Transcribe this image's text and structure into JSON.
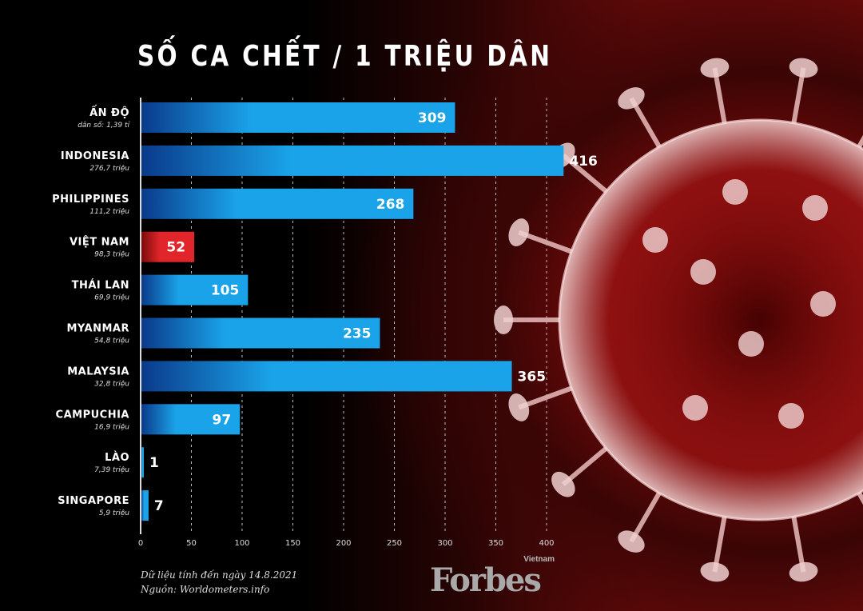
{
  "chart_data": {
    "type": "bar",
    "orientation": "horizontal",
    "title": "SỐ CA CHẾT / 1 TRIỆU DÂN",
    "categories": [
      "ẤN ĐỘ",
      "INDONESIA",
      "PHILIPPINES",
      "VIỆT NAM",
      "THÁI LAN",
      "MYANMAR",
      "MALAYSIA",
      "CAMPUCHIA",
      "LÀO",
      "SINGAPORE"
    ],
    "subtitles": [
      "dân số: 1,39 tỉ",
      "276,7 triệu",
      "111,2 triệu",
      "98,3 triệu",
      "69,9 triệu",
      "54,8 triệu",
      "32,8 triệu",
      "16,9 triệu",
      "7,39 triệu",
      "5,9 triệu"
    ],
    "values": [
      309,
      416,
      268,
      52,
      105,
      235,
      365,
      97,
      1,
      7
    ],
    "highlight": "VIỆT NAM",
    "xlim": [
      0,
      400
    ],
    "xticks": [
      0,
      50,
      100,
      150,
      200,
      250,
      300,
      350,
      400
    ],
    "grid": true,
    "colors": {
      "bar": "#1aa3e8",
      "bar_dark": "#0a3a8a",
      "highlight": "#e0262a",
      "highlight_dark": "#7a0a0a"
    }
  },
  "footer": {
    "note_line1": "Dữ liệu tính đến ngày 14.8.2021",
    "note_line2": "Nguồn: Worldometers.info"
  },
  "logo": {
    "brand": "Forbes",
    "edition": "Vietnam"
  }
}
